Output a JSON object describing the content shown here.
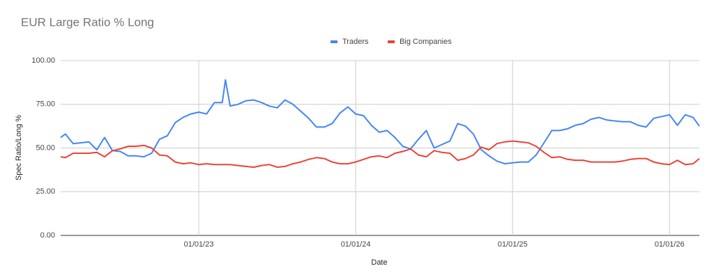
{
  "chart_data": {
    "type": "line",
    "title": "EUR Large Ratio % Long",
    "x_label": "Date",
    "y_label": "Spec Ratio/Long %",
    "x": [
      2022.12,
      2022.15,
      2022.2,
      2022.25,
      2022.3,
      2022.35,
      2022.4,
      2022.45,
      2022.5,
      2022.55,
      2022.6,
      2022.65,
      2022.7,
      2022.75,
      2022.8,
      2022.85,
      2022.9,
      2022.95,
      2023.0,
      2023.05,
      2023.1,
      2023.15,
      2023.17,
      2023.2,
      2023.25,
      2023.3,
      2023.35,
      2023.4,
      2023.45,
      2023.5,
      2023.55,
      2023.6,
      2023.65,
      2023.7,
      2023.75,
      2023.8,
      2023.85,
      2023.9,
      2023.95,
      2024.0,
      2024.05,
      2024.1,
      2024.15,
      2024.2,
      2024.25,
      2024.3,
      2024.35,
      2024.4,
      2024.45,
      2024.5,
      2024.55,
      2024.6,
      2024.65,
      2024.7,
      2024.75,
      2024.8,
      2024.85,
      2024.9,
      2024.95,
      2025.0,
      2025.05,
      2025.1,
      2025.15,
      2025.2,
      2025.25,
      2025.3,
      2025.35,
      2025.4,
      2025.45,
      2025.5,
      2025.55,
      2025.6,
      2025.65,
      2025.7,
      2025.75,
      2025.8,
      2025.85,
      2025.9,
      2025.95,
      2026.0,
      2026.05,
      2026.1,
      2026.15,
      2026.19
    ],
    "series": [
      {
        "name": "Traders",
        "color": "#4285f4",
        "values": [
          56,
          58,
          52.5,
          53,
          53.5,
          49,
          56,
          48.5,
          48,
          45.5,
          45.5,
          45,
          47,
          55,
          57,
          64.5,
          67.5,
          69.5,
          70.5,
          69.5,
          76,
          76,
          89,
          74,
          75,
          77,
          77.5,
          76,
          74,
          73,
          77.5,
          75,
          71,
          67,
          62,
          62,
          64,
          70,
          73.5,
          69.5,
          68.5,
          63,
          59,
          60,
          56,
          51,
          49.5,
          55,
          60,
          50,
          52,
          54,
          64,
          62.5,
          58,
          49,
          45.5,
          42.5,
          41,
          41.5,
          42,
          42,
          46,
          53,
          60,
          60,
          61,
          63,
          64,
          66.5,
          67.5,
          66,
          65.5,
          65,
          65,
          63,
          62,
          67,
          68,
          69,
          63,
          69,
          67.5,
          62.5
        ]
      },
      {
        "name": "Big Companies",
        "color": "#ea4335",
        "values": [
          45,
          44.5,
          47,
          47,
          47,
          47.5,
          45,
          48.5,
          49.5,
          51,
          51,
          51.5,
          50,
          46,
          45.5,
          42,
          41,
          41.5,
          40.5,
          41,
          40.5,
          40.5,
          40.5,
          40.5,
          40,
          39.5,
          39,
          40,
          40.5,
          39,
          39.5,
          41,
          42,
          43.5,
          44.5,
          44,
          42,
          41,
          41,
          42,
          43.5,
          45,
          45.5,
          44.5,
          47,
          48,
          49.5,
          46,
          45,
          48.5,
          47.5,
          47,
          43,
          44,
          46,
          50.5,
          49,
          52.5,
          53.5,
          54,
          53.5,
          53,
          51,
          47.5,
          44.5,
          45,
          43.5,
          43,
          43,
          42,
          42,
          42,
          42,
          42.5,
          43.5,
          44,
          44,
          42,
          41,
          40.5,
          43,
          40.5,
          41,
          44
        ]
      }
    ],
    "xlim": [
      2022.12,
      2026.19
    ],
    "xticks": [
      {
        "value": 2023,
        "label": "01/01/23"
      },
      {
        "value": 2024,
        "label": "01/01/24"
      },
      {
        "value": 2025,
        "label": "01/01/25"
      },
      {
        "value": 2026,
        "label": "01/01/26"
      }
    ],
    "ylim": [
      0,
      100
    ],
    "yticks": [
      {
        "value": 0,
        "label": "0.00"
      },
      {
        "value": 25,
        "label": "25.00"
      },
      {
        "value": 50,
        "label": "50.00"
      },
      {
        "value": 75,
        "label": "75.00"
      },
      {
        "value": 100,
        "label": "100.00"
      }
    ],
    "grid": true,
    "legend": "top"
  }
}
